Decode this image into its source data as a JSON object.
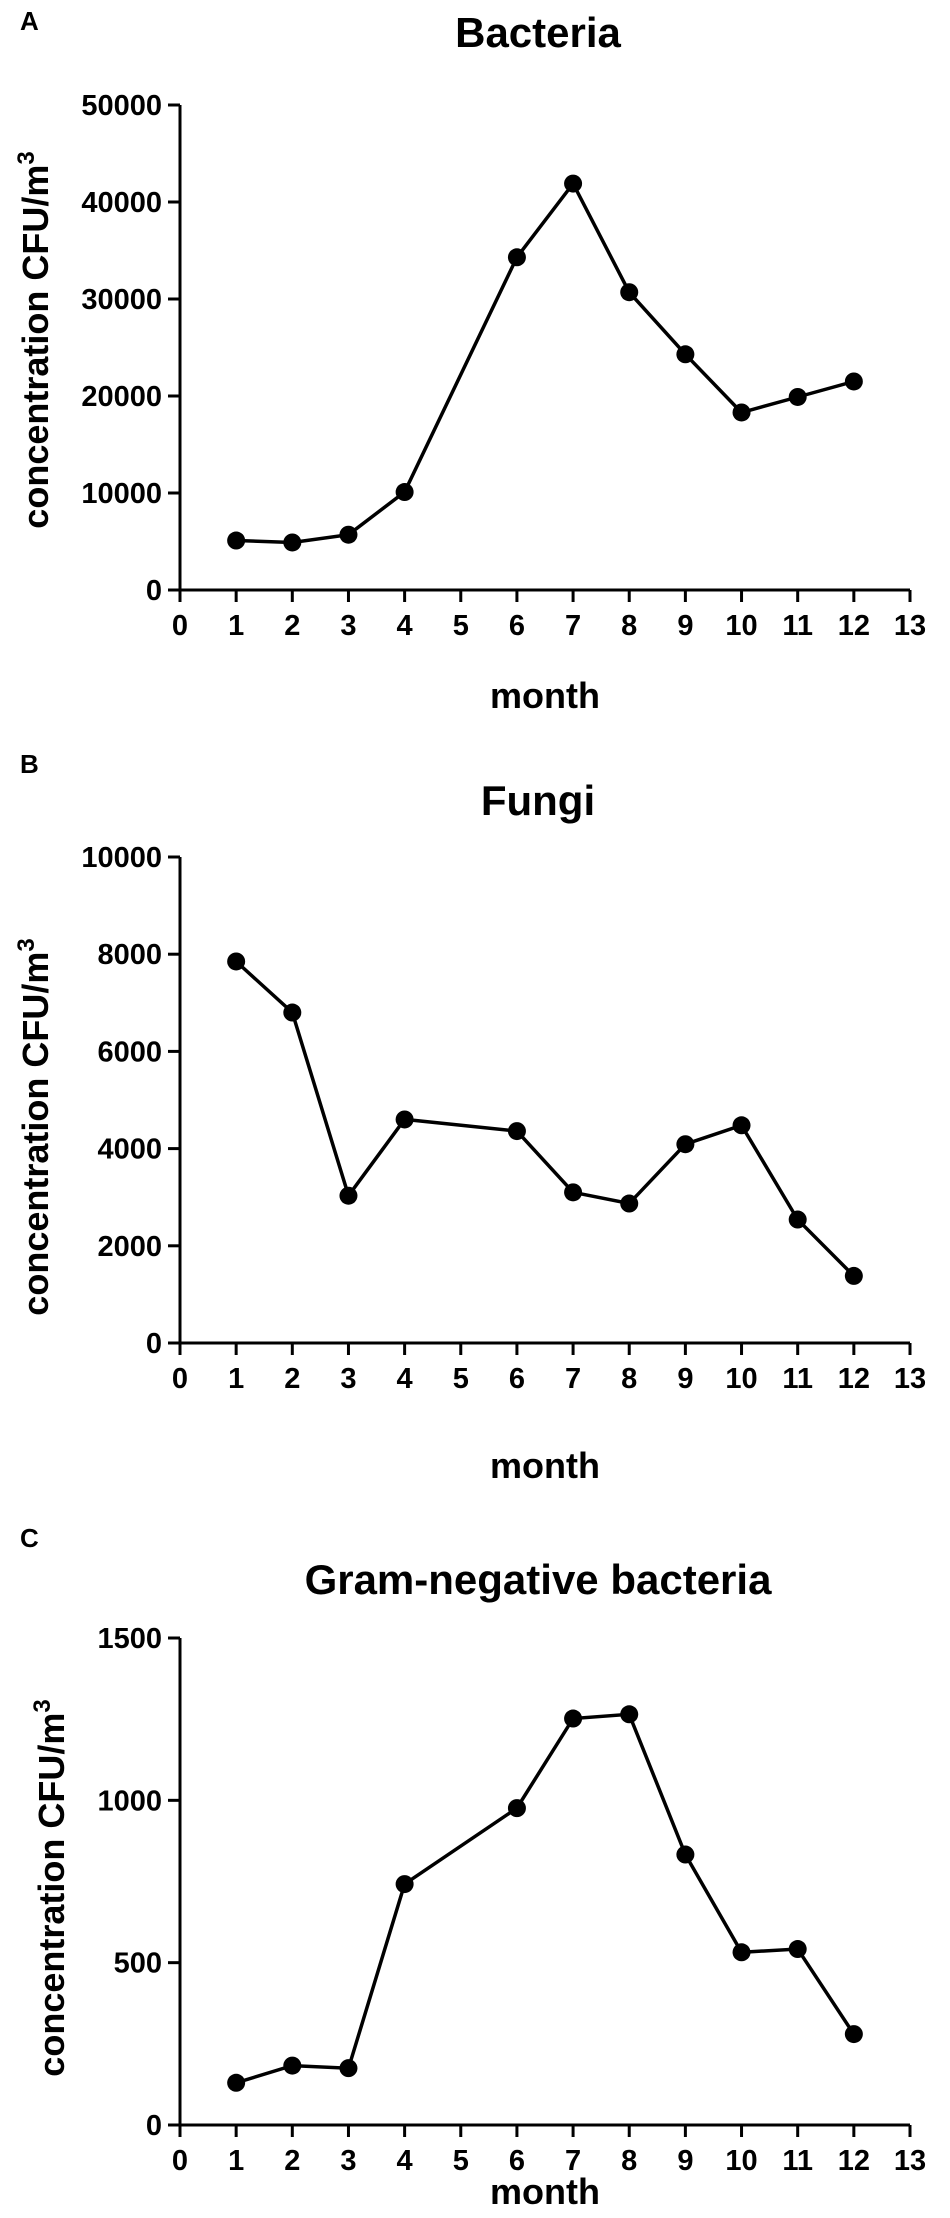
{
  "chart_data": [
    {
      "type": "line",
      "panel": "A",
      "title": "Bacteria",
      "xlabel": "month",
      "ylabel_main": "concentration CFU/m",
      "ylabel_sup": "3",
      "xlim": [
        0,
        13
      ],
      "ylim": [
        0,
        50000
      ],
      "xticks": [
        "0",
        "1",
        "2",
        "3",
        "4",
        "5",
        "6",
        "7",
        "8",
        "9",
        "10",
        "11",
        "12",
        "13"
      ],
      "yticks": [
        {
          "value": 0,
          "label": "0"
        },
        {
          "value": 10000,
          "label": "10000"
        },
        {
          "value": 20000,
          "label": "20000"
        },
        {
          "value": 30000,
          "label": "30000"
        },
        {
          "value": 40000,
          "label": "40000"
        },
        {
          "value": 50000,
          "label": "50000"
        }
      ],
      "x": [
        1,
        2,
        3,
        4,
        6,
        7,
        8,
        9,
        10,
        11,
        12
      ],
      "values": [
        5100,
        4900,
        5700,
        10100,
        34300,
        41900,
        30700,
        24300,
        18300,
        19900,
        21500
      ]
    },
    {
      "type": "line",
      "panel": "B",
      "title": "Fungi",
      "xlabel": "month",
      "ylabel_main": "concentration CFU/m",
      "ylabel_sup": "3",
      "xlim": [
        0,
        13
      ],
      "ylim": [
        0,
        10000
      ],
      "xticks": [
        "0",
        "1",
        "2",
        "3",
        "4",
        "5",
        "6",
        "7",
        "8",
        "9",
        "10",
        "11",
        "12",
        "13"
      ],
      "yticks": [
        {
          "value": 0,
          "label": "0"
        },
        {
          "value": 2000,
          "label": "2000"
        },
        {
          "value": 4000,
          "label": "4000"
        },
        {
          "value": 6000,
          "label": "6000"
        },
        {
          "value": 8000,
          "label": "8000"
        },
        {
          "value": 10000,
          "label": "10000"
        }
      ],
      "x": [
        1,
        2,
        3,
        4,
        6,
        7,
        8,
        9,
        10,
        11,
        12
      ],
      "values": [
        7850,
        6800,
        3030,
        4600,
        4360,
        3100,
        2870,
        4090,
        4480,
        2540,
        1380
      ]
    },
    {
      "type": "line",
      "panel": "C",
      "title": "Gram-negative bacteria",
      "xlabel": "month",
      "ylabel_main": "concentration CFU/m",
      "ylabel_sup": "3",
      "xlim": [
        0,
        13
      ],
      "ylim": [
        0,
        1500
      ],
      "xticks": [
        "0",
        "1",
        "2",
        "3",
        "4",
        "5",
        "6",
        "7",
        "8",
        "9",
        "10",
        "11",
        "12",
        "13"
      ],
      "yticks": [
        {
          "value": 0,
          "label": "0"
        },
        {
          "value": 500,
          "label": "500"
        },
        {
          "value": 1000,
          "label": "1000"
        },
        {
          "value": 1500,
          "label": "1500"
        }
      ],
      "x": [
        1,
        2,
        3,
        4,
        6,
        7,
        8,
        9,
        10,
        11,
        12
      ],
      "values": [
        130,
        183,
        175,
        742,
        976,
        1252,
        1265,
        833,
        532,
        542,
        280
      ]
    }
  ]
}
